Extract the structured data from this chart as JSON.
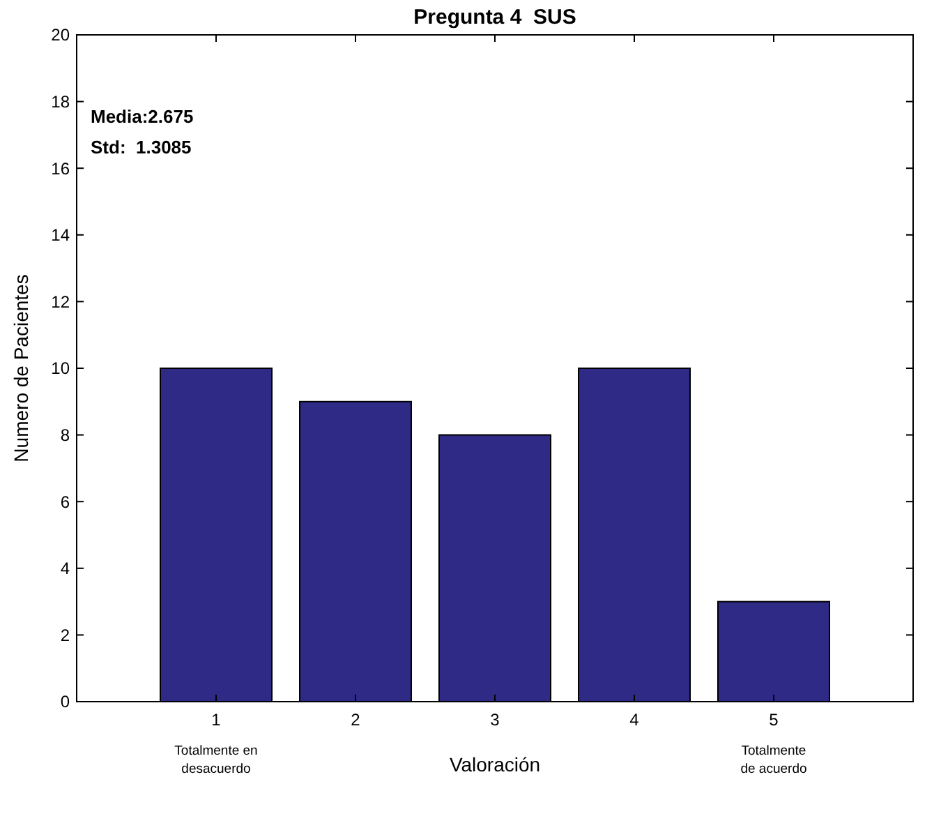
{
  "chart_data": {
    "type": "bar",
    "title": "Pregunta 4  SUS",
    "xlabel": "Valoración",
    "ylabel": "Numero de Pacientes",
    "categories": [
      "1",
      "2",
      "3",
      "4",
      "5"
    ],
    "values": [
      10,
      9,
      8,
      10,
      3
    ],
    "color": "#2e2a86",
    "ylim": [
      0,
      20
    ],
    "yticks": [
      0,
      2,
      4,
      6,
      8,
      10,
      12,
      14,
      16,
      18,
      20
    ],
    "grid": false,
    "annotations": [
      "Media:2.675",
      "Std:  1.3085",
      "Totalmente en\ndesacuerdo",
      "Totalmente\nde acuerdo"
    ]
  }
}
